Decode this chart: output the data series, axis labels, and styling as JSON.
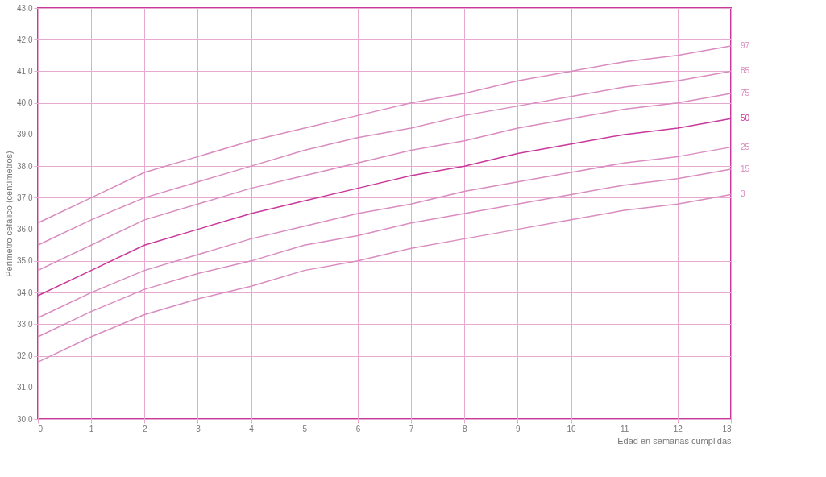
{
  "chart_data": {
    "type": "line",
    "xlabel": "Edad en semanas cumplidas",
    "ylabel": "Perímetro cefálico (centímetros)",
    "x": [
      0,
      1,
      2,
      3,
      4,
      5,
      6,
      7,
      8,
      9,
      10,
      11,
      12,
      13
    ],
    "series": [
      {
        "name": "97",
        "color": "#d98cbf",
        "values": [
          36.2,
          37.0,
          37.8,
          38.3,
          38.8,
          39.2,
          39.6,
          40.0,
          40.3,
          40.7,
          41.0,
          41.3,
          41.5,
          41.8
        ]
      },
      {
        "name": "85",
        "color": "#d98cbf",
        "values": [
          35.5,
          36.3,
          37.0,
          37.5,
          38.0,
          38.5,
          38.9,
          39.2,
          39.6,
          39.9,
          40.2,
          40.5,
          40.7,
          41.0
        ]
      },
      {
        "name": "75",
        "color": "#d98cbf",
        "values": [
          34.7,
          35.5,
          36.3,
          36.8,
          37.3,
          37.7,
          38.1,
          38.5,
          38.8,
          39.2,
          39.5,
          39.8,
          40.0,
          40.3
        ]
      },
      {
        "name": "50",
        "color": "#c8389a",
        "values": [
          33.9,
          34.7,
          35.5,
          36.0,
          36.5,
          36.9,
          37.3,
          37.7,
          38.0,
          38.4,
          38.7,
          39.0,
          39.2,
          39.5
        ]
      },
      {
        "name": "25",
        "color": "#d98cbf",
        "values": [
          33.2,
          34.0,
          34.7,
          35.2,
          35.7,
          36.1,
          36.5,
          36.8,
          37.2,
          37.5,
          37.8,
          38.1,
          38.3,
          38.6
        ]
      },
      {
        "name": "15",
        "color": "#d98cbf",
        "values": [
          32.6,
          33.4,
          34.1,
          34.6,
          35.0,
          35.5,
          35.8,
          36.2,
          36.5,
          36.8,
          37.1,
          37.4,
          37.6,
          37.9
        ]
      },
      {
        "name": "3",
        "color": "#d98cbf",
        "values": [
          31.8,
          32.6,
          33.3,
          33.8,
          34.2,
          34.7,
          35.0,
          35.4,
          35.7,
          36.0,
          36.3,
          36.6,
          36.8,
          37.1
        ]
      }
    ],
    "xlim": [
      0,
      13
    ],
    "xticks": [
      0,
      1,
      2,
      3,
      4,
      5,
      6,
      7,
      8,
      9,
      10,
      11,
      12,
      13
    ],
    "ylim": [
      30,
      43
    ],
    "yticks": [
      {
        "value": 30,
        "label": "30,0"
      },
      {
        "value": 31,
        "label": "31,0"
      },
      {
        "value": 32,
        "label": "32,0"
      },
      {
        "value": 33,
        "label": "33,0"
      },
      {
        "value": 34,
        "label": "34,0"
      },
      {
        "value": 35,
        "label": "35,0"
      },
      {
        "value": 36,
        "label": "36,0"
      },
      {
        "value": 37,
        "label": "37,0"
      },
      {
        "value": 38,
        "label": "38,0"
      },
      {
        "value": 39,
        "label": "39,0"
      },
      {
        "value": 40,
        "label": "40,0"
      },
      {
        "value": 41,
        "label": "41,0"
      },
      {
        "value": 42,
        "label": "42,0"
      },
      {
        "value": 43,
        "label": "43,0"
      }
    ],
    "grid": true,
    "legend": false,
    "marker": "none",
    "line_style": "solid"
  }
}
